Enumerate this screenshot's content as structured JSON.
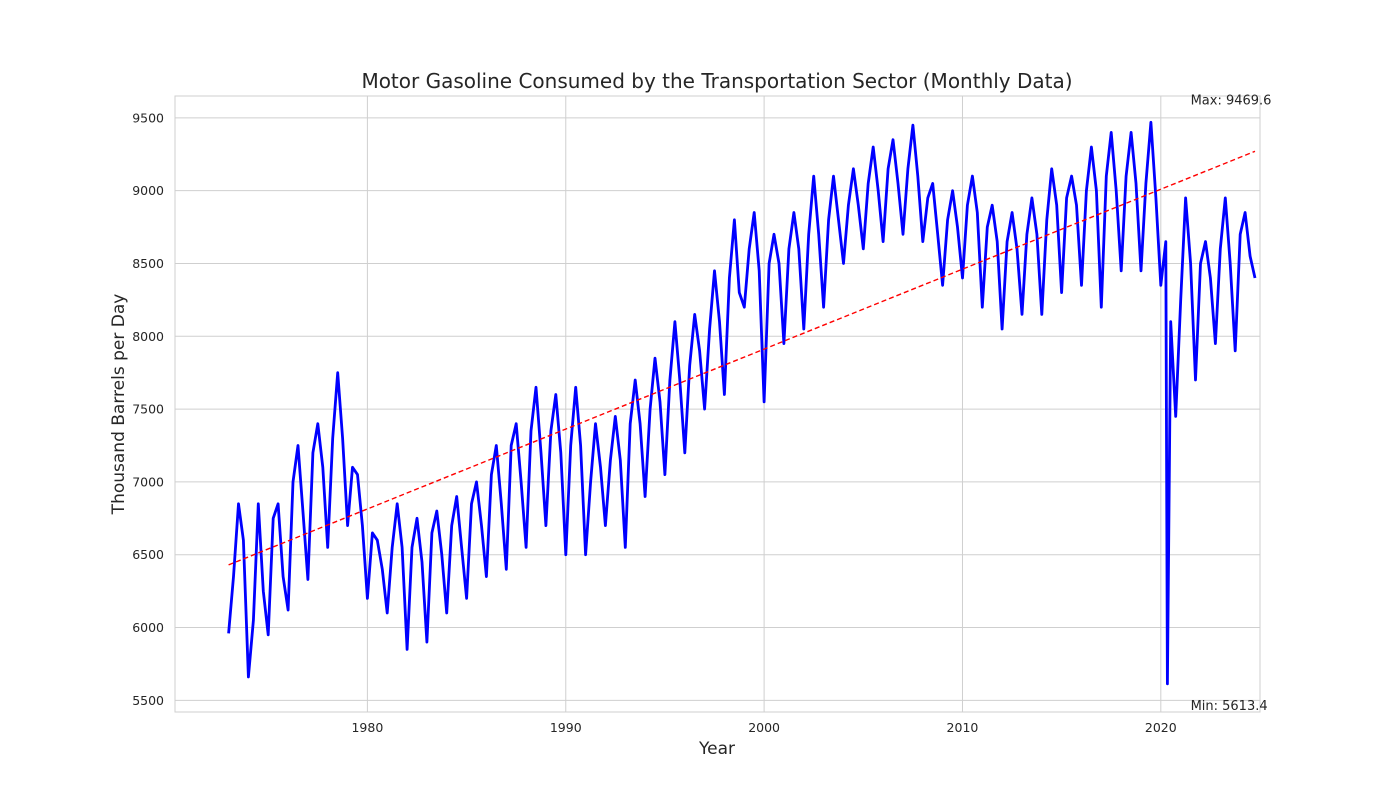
{
  "chart_data": {
    "type": "line",
    "title": "Motor Gasoline Consumed by the Transportation Sector (Monthly Data)",
    "xlabel": "Year",
    "ylabel": "Thousand Barrels per Day",
    "xlim": [
      1970.3,
      2025.0
    ],
    "ylim": [
      5420,
      9650
    ],
    "x_ticks": [
      1980,
      1990,
      2000,
      2010,
      2020
    ],
    "y_ticks": [
      5500,
      6000,
      6500,
      7000,
      7500,
      8000,
      8500,
      9000,
      9500
    ],
    "grid": true,
    "series": [
      {
        "color": "#0000ff",
        "x": [
          1973.0,
          1973.25,
          1973.5,
          1973.75,
          1974.0,
          1974.25,
          1974.5,
          1974.75,
          1975.0,
          1975.25,
          1975.5,
          1975.75,
          1976.0,
          1976.25,
          1976.5,
          1976.75,
          1977.0,
          1977.25,
          1977.5,
          1977.75,
          1978.0,
          1978.25,
          1978.5,
          1978.75,
          1979.0,
          1979.25,
          1979.5,
          1979.75,
          1980.0,
          1980.25,
          1980.5,
          1980.75,
          1981.0,
          1981.25,
          1981.5,
          1981.75,
          1982.0,
          1982.25,
          1982.5,
          1982.75,
          1983.0,
          1983.25,
          1983.5,
          1983.75,
          1984.0,
          1984.25,
          1984.5,
          1984.75,
          1985.0,
          1985.25,
          1985.5,
          1985.75,
          1986.0,
          1986.25,
          1986.5,
          1986.75,
          1987.0,
          1987.25,
          1987.5,
          1987.75,
          1988.0,
          1988.25,
          1988.5,
          1988.75,
          1989.0,
          1989.25,
          1989.5,
          1989.75,
          1990.0,
          1990.25,
          1990.5,
          1990.75,
          1991.0,
          1991.25,
          1991.5,
          1991.75,
          1992.0,
          1992.25,
          1992.5,
          1992.75,
          1993.0,
          1993.25,
          1993.5,
          1993.75,
          1994.0,
          1994.25,
          1994.5,
          1994.75,
          1995.0,
          1995.25,
          1995.5,
          1995.75,
          1996.0,
          1996.25,
          1996.5,
          1996.75,
          1997.0,
          1997.25,
          1997.5,
          1997.75,
          1998.0,
          1998.25,
          1998.5,
          1998.75,
          1999.0,
          1999.25,
          1999.5,
          1999.75,
          2000.0,
          2000.25,
          2000.5,
          2000.75,
          2001.0,
          2001.25,
          2001.5,
          2001.75,
          2002.0,
          2002.25,
          2002.5,
          2002.75,
          2003.0,
          2003.25,
          2003.5,
          2003.75,
          2004.0,
          2004.25,
          2004.5,
          2004.75,
          2005.0,
          2005.25,
          2005.5,
          2005.75,
          2006.0,
          2006.25,
          2006.5,
          2006.75,
          2007.0,
          2007.25,
          2007.5,
          2007.75,
          2008.0,
          2008.25,
          2008.5,
          2008.75,
          2009.0,
          2009.25,
          2009.5,
          2009.75,
          2010.0,
          2010.25,
          2010.5,
          2010.75,
          2011.0,
          2011.25,
          2011.5,
          2011.75,
          2012.0,
          2012.25,
          2012.5,
          2012.75,
          2013.0,
          2013.25,
          2013.5,
          2013.75,
          2014.0,
          2014.25,
          2014.5,
          2014.75,
          2015.0,
          2015.25,
          2015.5,
          2015.75,
          2016.0,
          2016.25,
          2016.5,
          2016.75,
          2017.0,
          2017.25,
          2017.5,
          2017.75,
          2018.0,
          2018.25,
          2018.5,
          2018.75,
          2019.0,
          2019.25,
          2019.5,
          2019.75,
          2020.0,
          2020.25,
          2020.33,
          2020.5,
          2020.75,
          2021.0,
          2021.25,
          2021.5,
          2021.75,
          2022.0,
          2022.25,
          2022.5,
          2022.75,
          2023.0,
          2023.25,
          2023.5,
          2023.75,
          2024.0,
          2024.25,
          2024.5,
          2024.75
        ],
        "y": [
          5960,
          6350,
          6850,
          6600,
          5660,
          6050,
          6850,
          6250,
          5950,
          6750,
          6850,
          6350,
          6120,
          7000,
          7250,
          6800,
          6330,
          7200,
          7400,
          7100,
          6550,
          7300,
          7750,
          7300,
          6700,
          7100,
          7050,
          6700,
          6200,
          6650,
          6600,
          6400,
          6100,
          6550,
          6850,
          6550,
          5850,
          6550,
          6750,
          6450,
          5900,
          6650,
          6800,
          6500,
          6100,
          6700,
          6900,
          6550,
          6200,
          6850,
          7000,
          6700,
          6350,
          7050,
          7250,
          6850,
          6400,
          7250,
          7400,
          7000,
          6550,
          7350,
          7650,
          7200,
          6700,
          7350,
          7600,
          7200,
          6500,
          7250,
          7650,
          7250,
          6500,
          7000,
          7400,
          7100,
          6700,
          7150,
          7450,
          7150,
          6550,
          7400,
          7700,
          7400,
          6900,
          7500,
          7850,
          7550,
          7050,
          7700,
          8100,
          7700,
          7200,
          7800,
          8150,
          7900,
          7500,
          8050,
          8450,
          8100,
          7600,
          8400,
          8800,
          8300,
          8200,
          8600,
          8850,
          8450,
          7550,
          8500,
          8700,
          8500,
          7950,
          8600,
          8850,
          8600,
          8050,
          8700,
          9100,
          8700,
          8200,
          8800,
          9100,
          8800,
          8500,
          8900,
          9150,
          8900,
          8600,
          9050,
          9300,
          9000,
          8650,
          9150,
          9350,
          9050,
          8700,
          9150,
          9450,
          9100,
          8650,
          8950,
          9050,
          8700,
          8350,
          8800,
          9000,
          8750,
          8400,
          8900,
          9100,
          8850,
          8200,
          8750,
          8900,
          8650,
          8050,
          8650,
          8850,
          8600,
          8150,
          8700,
          8950,
          8700,
          8150,
          8800,
          9150,
          8900,
          8300,
          8950,
          9100,
          8900,
          8350,
          9000,
          9300,
          9000,
          8200,
          9100,
          9400,
          9000,
          8450,
          9100,
          9400,
          9050,
          8450,
          9050,
          9469.6,
          8950,
          8350,
          8650,
          5613.4,
          8100,
          7450,
          8250,
          8950,
          8500,
          7700,
          8500,
          8650,
          8400,
          7950,
          8600,
          8950,
          8500,
          7900,
          8700,
          8850,
          8550,
          8400
        ]
      },
      {
        "color": "#ff0000",
        "dashed": true,
        "x": [
          1973.0,
          2024.75
        ],
        "y": [
          6430,
          9270
        ]
      }
    ],
    "annotations": [
      {
        "text": "Max: 9469.6",
        "x": 2021.5,
        "y": 9469.6,
        "position": "above"
      },
      {
        "text": "Min: 5613.4",
        "x": 2021.5,
        "y": 5613.4,
        "position": "below"
      }
    ]
  }
}
